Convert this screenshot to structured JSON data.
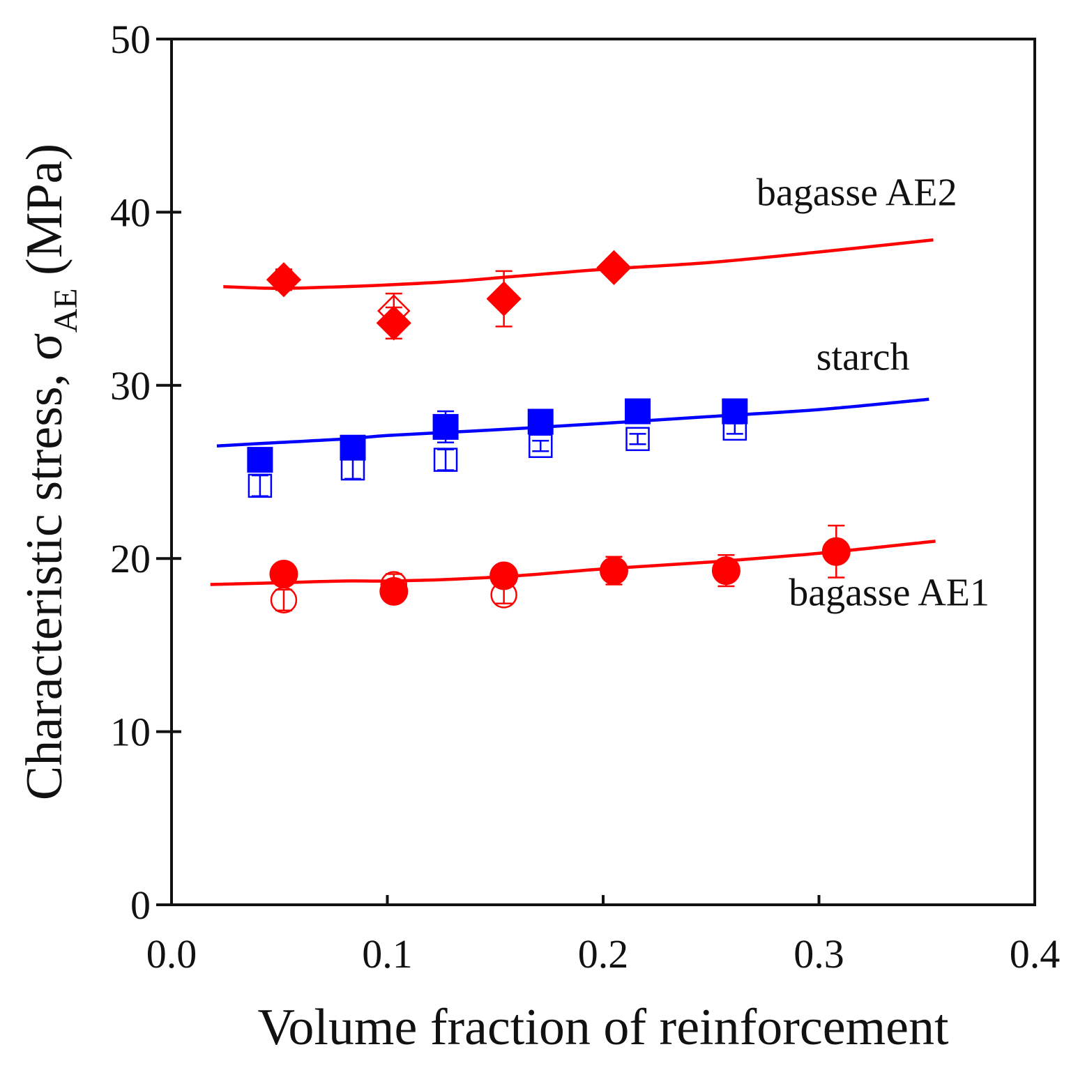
{
  "chart_data": {
    "type": "scatter",
    "title": "",
    "xlabel": "Volume fraction of reinforcement",
    "ylabel": {
      "prefix": "Characteristic stress, σ",
      "subscript": "AE",
      "suffix": " (MPa)"
    },
    "xlim": [
      0.0,
      0.4
    ],
    "ylim": [
      0,
      50
    ],
    "xticks": [
      "0.0",
      "0.1",
      "0.2",
      "0.3",
      "0.4"
    ],
    "yticks": [
      "0",
      "10",
      "20",
      "30",
      "40",
      "50"
    ],
    "grid": false,
    "series": [
      {
        "name": "bagasse AE2 (filled)",
        "group": "bagasse AE2",
        "marker": "diamond",
        "filled": true,
        "color": "#ff0000",
        "x": [
          0.052,
          0.103,
          0.154,
          0.205
        ],
        "y": [
          36.1,
          33.6,
          35.0,
          36.8
        ],
        "err": [
          0.6,
          0.9,
          1.6,
          0.5
        ]
      },
      {
        "name": "bagasse AE2 (open)",
        "group": "bagasse AE2",
        "marker": "diamond",
        "filled": false,
        "color": "#ff0000",
        "x": [
          0.103
        ],
        "y": [
          34.3
        ],
        "err": [
          1.0
        ]
      },
      {
        "name": "starch (filled)",
        "group": "starch",
        "marker": "square",
        "filled": true,
        "color": "#0000ff",
        "x": [
          0.041,
          0.084,
          0.127,
          0.171,
          0.216,
          0.261
        ],
        "y": [
          25.7,
          26.4,
          27.6,
          27.9,
          28.5,
          28.5
        ],
        "err": [
          0.4,
          0.4,
          0.9,
          0.4,
          0.4,
          0.4
        ]
      },
      {
        "name": "starch (open)",
        "group": "starch",
        "marker": "square",
        "filled": false,
        "color": "#0000ff",
        "x": [
          0.041,
          0.084,
          0.127,
          0.171,
          0.216,
          0.261
        ],
        "y": [
          24.2,
          25.2,
          25.7,
          26.5,
          26.9,
          27.5
        ],
        "err": [
          0.6,
          0.6,
          0.6,
          0.3,
          0.3,
          0.3
        ]
      },
      {
        "name": "bagasse AE1 (filled)",
        "group": "bagasse AE1",
        "marker": "circle",
        "filled": true,
        "color": "#ff0000",
        "x": [
          0.052,
          0.103,
          0.154,
          0.205,
          0.257,
          0.308
        ],
        "y": [
          19.1,
          18.1,
          19.0,
          19.3,
          19.3,
          20.4
        ],
        "err": [
          0.6,
          0.4,
          0.5,
          0.8,
          0.9,
          1.5
        ]
      },
      {
        "name": "bagasse AE1 (open)",
        "group": "bagasse AE1",
        "marker": "circle",
        "filled": false,
        "color": "#ff0000",
        "x": [
          0.052,
          0.103,
          0.154
        ],
        "y": [
          17.6,
          18.5,
          17.9
        ],
        "err": [
          0.6,
          0.6,
          0.5
        ]
      }
    ],
    "fits": [
      {
        "name": "bagasse AE2 fit",
        "color": "#ff0000",
        "x": [
          0.024,
          0.05,
          0.08,
          0.1,
          0.13,
          0.16,
          0.2,
          0.25,
          0.3,
          0.353
        ],
        "y": [
          35.7,
          35.6,
          35.7,
          35.8,
          36.0,
          36.3,
          36.7,
          37.1,
          37.7,
          38.4
        ]
      },
      {
        "name": "starch fit",
        "color": "#0000ff",
        "x": [
          0.021,
          0.05,
          0.08,
          0.1,
          0.13,
          0.16,
          0.2,
          0.25,
          0.3,
          0.351
        ],
        "y": [
          26.5,
          26.7,
          26.9,
          27.1,
          27.3,
          27.5,
          27.8,
          28.2,
          28.6,
          29.2
        ]
      },
      {
        "name": "bagasse AE1 fit",
        "color": "#ff0000",
        "x": [
          0.018,
          0.05,
          0.08,
          0.1,
          0.13,
          0.16,
          0.2,
          0.25,
          0.3,
          0.354
        ],
        "y": [
          18.5,
          18.6,
          18.7,
          18.7,
          18.8,
          19.0,
          19.4,
          19.8,
          20.3,
          21.0
        ]
      }
    ],
    "annotations": [
      {
        "text": "bagasse AE2",
        "x": 0.364,
        "y": 40.4,
        "anchor": "end"
      },
      {
        "text": "starch",
        "x": 0.342,
        "y": 30.9,
        "anchor": "end"
      },
      {
        "text": "bagasse AE1",
        "x": 0.379,
        "y": 17.3,
        "anchor": "end"
      }
    ]
  }
}
